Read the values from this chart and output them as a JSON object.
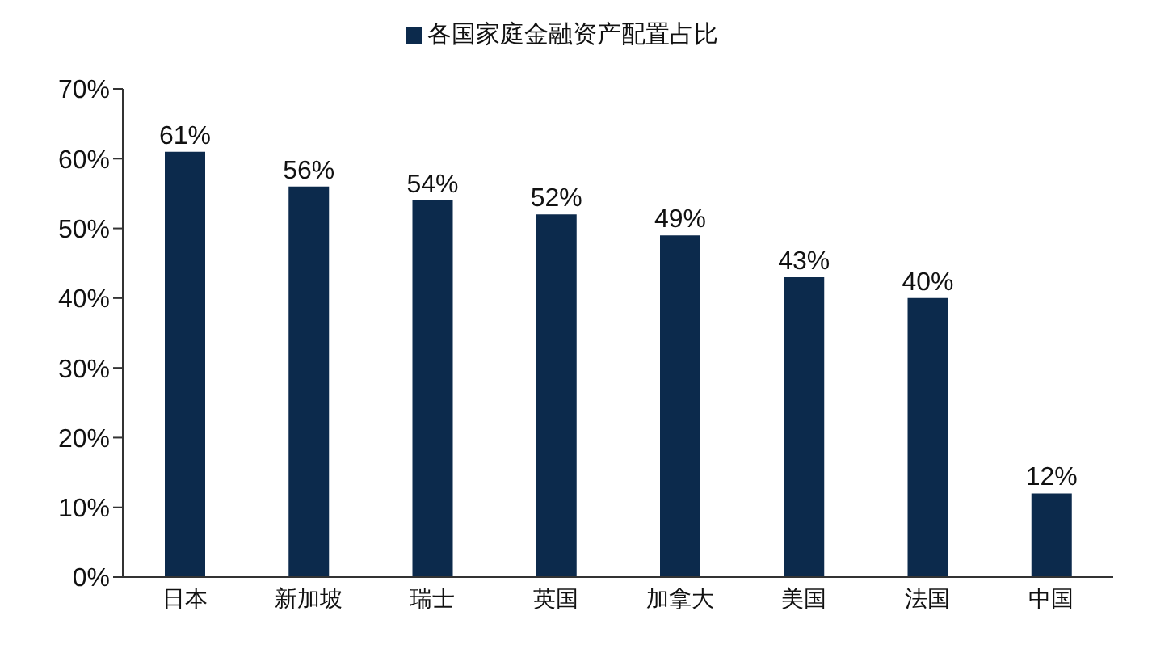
{
  "chart_data": {
    "type": "bar",
    "categories": [
      "日本",
      "新加坡",
      "瑞士",
      "英国",
      "加拿大",
      "美国",
      "法国",
      "中国"
    ],
    "series": [
      {
        "name": "各国家庭金融资产配置占比",
        "color": "#0c2a4c",
        "values": [
          61,
          56,
          54,
          52,
          49,
          43,
          40,
          12
        ],
        "value_labels": [
          "61%",
          "56%",
          "54%",
          "52%",
          "49%",
          "43%",
          "40%",
          "12%"
        ]
      }
    ],
    "ylim": [
      0,
      70
    ],
    "yticks": [
      {
        "value": 0,
        "label": "0%"
      },
      {
        "value": 10,
        "label": "10%"
      },
      {
        "value": 20,
        "label": "20%"
      },
      {
        "value": 30,
        "label": "30%"
      },
      {
        "value": 40,
        "label": "40%"
      },
      {
        "value": 50,
        "label": "50%"
      },
      {
        "value": 60,
        "label": "60%"
      },
      {
        "value": 70,
        "label": "70%"
      }
    ],
    "grid": false,
    "legend": "top"
  }
}
